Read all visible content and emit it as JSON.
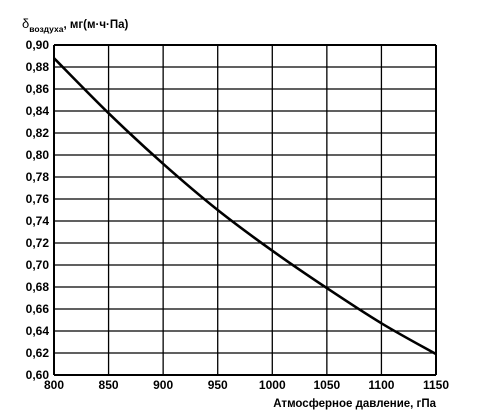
{
  "chart_data": {
    "type": "line",
    "title": "",
    "ylabel": {
      "symbol": "δ",
      "subscript": "воздуха",
      "unit": ", мг(м·ч·Па)"
    },
    "xlabel": "Атмосферное давление, гПа",
    "xlim": [
      800,
      1150
    ],
    "ylim": [
      0.6,
      0.9
    ],
    "x_ticks": [
      800,
      850,
      900,
      950,
      1000,
      1050,
      1100,
      1150
    ],
    "x_tick_labels": [
      "800",
      "850",
      "900",
      "950",
      "1000",
      "1050",
      "1100",
      "1150"
    ],
    "y_ticks": [
      0.6,
      0.62,
      0.64,
      0.66,
      0.68,
      0.7,
      0.72,
      0.74,
      0.76,
      0.78,
      0.8,
      0.82,
      0.84,
      0.86,
      0.88,
      0.9
    ],
    "y_tick_labels": [
      "0,60",
      "0,62",
      "0,64",
      "0,66",
      "0,68",
      "0,70",
      "0,72",
      "0,74",
      "0,76",
      "0,78",
      "0,80",
      "0,82",
      "0,84",
      "0,86",
      "0,88",
      "0,90"
    ],
    "grid": true,
    "series": [
      {
        "x": [
          800,
          850,
          900,
          950,
          1000,
          1050,
          1100,
          1150
        ],
        "y": [
          0.888,
          0.838,
          0.792,
          0.75,
          0.713,
          0.679,
          0.647,
          0.619
        ]
      }
    ],
    "colors": {
      "line": "#000000",
      "grid": "#000000",
      "background": "#ffffff"
    }
  }
}
